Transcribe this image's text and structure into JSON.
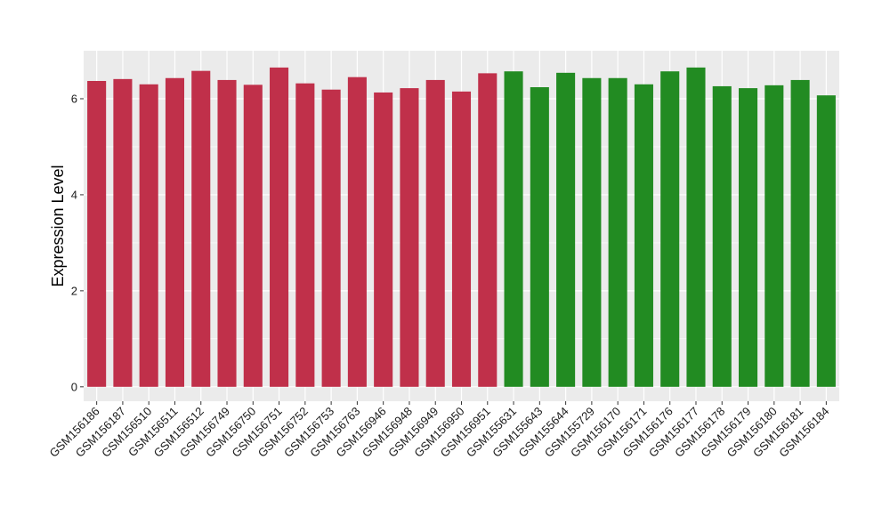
{
  "chart_data": {
    "type": "bar",
    "title": "",
    "xlabel": "",
    "ylabel": "Expression Level",
    "ylim": [
      -0.3,
      7.0
    ],
    "yticks": [
      0,
      2,
      4,
      6
    ],
    "grid": true,
    "legend": "none",
    "colors": {
      "red": "#c0304a",
      "green": "#228b22",
      "panel": "#ebebeb",
      "gridline": "#ffffff"
    },
    "categories": [
      "GSM156186",
      "GSM156187",
      "GSM156510",
      "GSM156511",
      "GSM156512",
      "GSM156749",
      "GSM156750",
      "GSM156751",
      "GSM156752",
      "GSM156753",
      "GSM156763",
      "GSM156946",
      "GSM156948",
      "GSM156949",
      "GSM156950",
      "GSM156951",
      "GSM155631",
      "GSM155643",
      "GSM155644",
      "GSM155729",
      "GSM156170",
      "GSM156171",
      "GSM156176",
      "GSM156177",
      "GSM156178",
      "GSM156179",
      "GSM156180",
      "GSM156181",
      "GSM156184"
    ],
    "values": [
      6.37,
      6.41,
      6.3,
      6.43,
      6.58,
      6.39,
      6.29,
      6.65,
      6.32,
      6.19,
      6.45,
      6.13,
      6.22,
      6.39,
      6.15,
      6.53,
      6.57,
      6.24,
      6.54,
      6.43,
      6.43,
      6.3,
      6.57,
      6.65,
      6.26,
      6.22,
      6.28,
      6.39,
      6.07
    ],
    "bar_colors": [
      "red",
      "red",
      "red",
      "red",
      "red",
      "red",
      "red",
      "red",
      "red",
      "red",
      "red",
      "red",
      "red",
      "red",
      "red",
      "red",
      "green",
      "green",
      "green",
      "green",
      "green",
      "green",
      "green",
      "green",
      "green",
      "green",
      "green",
      "green",
      "green"
    ]
  }
}
